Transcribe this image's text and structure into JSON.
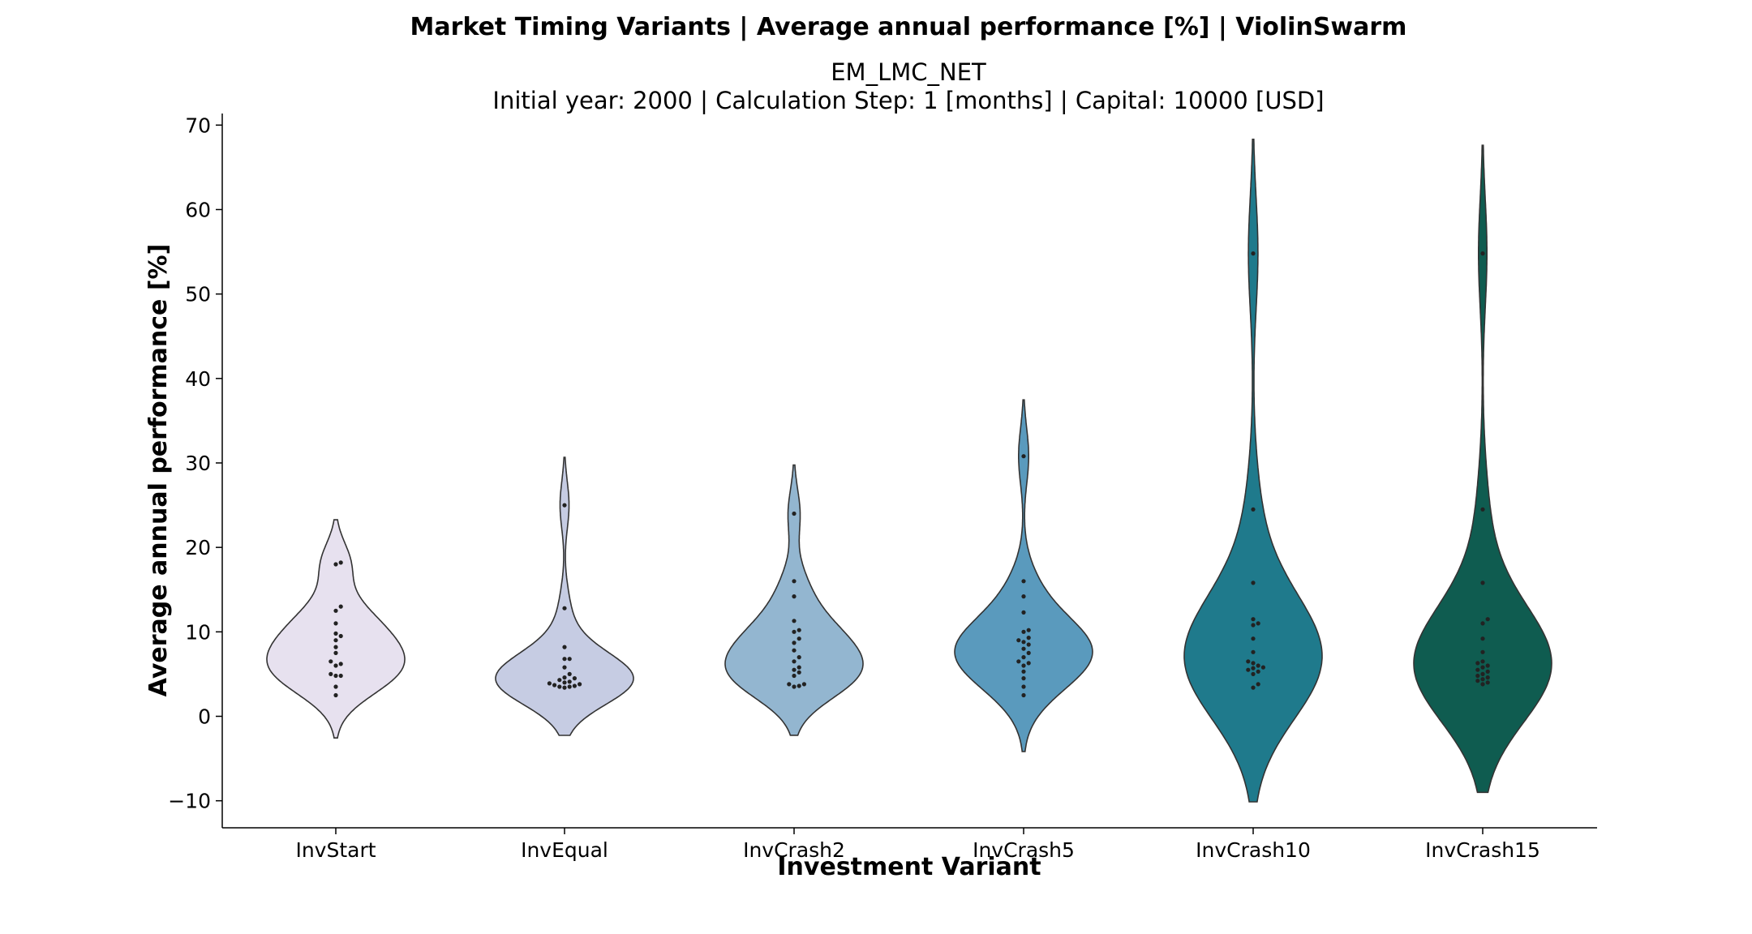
{
  "title": "Market Timing Variants | Average annual performance [%] | ViolinSwarm",
  "subtitle_line1": "EM_LMC_NET",
  "subtitle_line2": "Initial year: 2000 | Calculation Step: 1 [months] | Capital: 10000 [USD]",
  "chart_data": {
    "type": "violin",
    "xlabel": "Investment Variant",
    "ylabel": "Average annual performance [%]",
    "ylim": [
      -13,
      71
    ],
    "yticks": [
      -10,
      0,
      10,
      20,
      30,
      40,
      50,
      60,
      70
    ],
    "grid": false,
    "categories": [
      "InvStart",
      "InvEqual",
      "InvCrash2",
      "InvCrash5",
      "InvCrash10",
      "InvCrash15"
    ],
    "colors": [
      "#e7e1ef",
      "#c6cce3",
      "#93b6d0",
      "#5a9abd",
      "#1f7a8c",
      "#0f5c50"
    ],
    "series": [
      {
        "name": "InvStart",
        "values": [
          18.2,
          18.0,
          13.0,
          12.5,
          11.0,
          9.8,
          9.5,
          9.0,
          8.2,
          7.5,
          6.5,
          6.2,
          6.0,
          5.0,
          4.8,
          4.8,
          3.5,
          2.5
        ]
      },
      {
        "name": "InvEqual",
        "values": [
          25.0,
          12.8,
          8.2,
          6.8,
          6.8,
          5.8,
          5.0,
          4.6,
          4.5,
          4.3,
          4.1,
          4.0,
          3.9,
          3.8,
          3.7,
          3.6,
          3.5,
          3.5,
          3.4
        ]
      },
      {
        "name": "InvCrash2",
        "values": [
          24.0,
          16.0,
          14.2,
          11.3,
          10.2,
          10.0,
          9.2,
          8.7,
          7.8,
          7.0,
          6.5,
          5.8,
          5.5,
          5.2,
          4.8,
          3.8,
          3.8,
          3.6,
          3.5
        ]
      },
      {
        "name": "InvCrash5",
        "values": [
          30.8,
          16.0,
          14.2,
          12.3,
          10.2,
          10.0,
          9.3,
          9.0,
          8.8,
          8.5,
          8.0,
          7.5,
          7.0,
          6.5,
          6.3,
          6.0,
          5.3,
          4.5,
          3.5,
          2.5
        ]
      },
      {
        "name": "InvCrash10",
        "values": [
          54.8,
          24.5,
          15.8,
          11.5,
          11.0,
          10.8,
          9.2,
          7.6,
          6.5,
          6.3,
          6.0,
          5.8,
          5.7,
          5.5,
          5.3,
          5.0,
          3.8,
          3.4
        ]
      },
      {
        "name": "InvCrash15",
        "values": [
          54.8,
          24.5,
          15.8,
          11.5,
          11.0,
          9.2,
          7.6,
          6.5,
          6.3,
          6.0,
          5.8,
          5.5,
          5.3,
          5.0,
          4.8,
          4.6,
          4.4,
          4.2,
          4.0,
          3.8
        ]
      }
    ]
  }
}
